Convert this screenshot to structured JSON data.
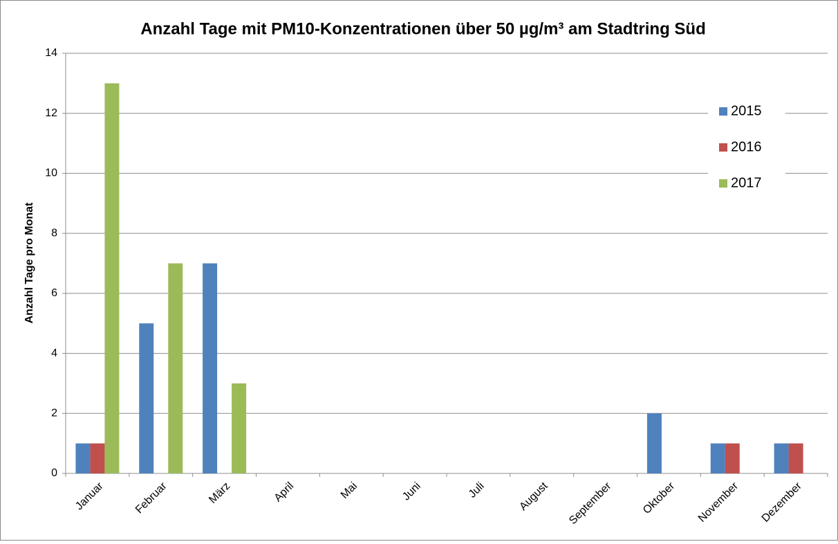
{
  "chart_data": {
    "type": "bar",
    "title": "Anzahl Tage mit PM10-Konzentrationen über 50 µg/m³ am Stadtring Süd",
    "y_label": "Anzahl Tage pro Monat",
    "categories": [
      "Januar",
      "Februar",
      "März",
      "April",
      "Mai",
      "Juni",
      "Juli",
      "August",
      "September",
      "Oktober",
      "November",
      "Dezember"
    ],
    "series": [
      {
        "name": "2015",
        "color": "#4f81bd",
        "values": [
          1,
          5,
          7,
          0,
          0,
          0,
          0,
          0,
          0,
          2,
          1,
          1
        ]
      },
      {
        "name": "2016",
        "color": "#c0504d",
        "values": [
          1,
          0,
          0,
          0,
          0,
          0,
          0,
          0,
          0,
          0,
          1,
          1
        ]
      },
      {
        "name": "2017",
        "color": "#9bbb59",
        "values": [
          13,
          7,
          3,
          0,
          0,
          0,
          0,
          0,
          0,
          0,
          0,
          0
        ]
      }
    ],
    "ylim": [
      0,
      14
    ],
    "yticks": [
      0,
      2,
      4,
      6,
      8,
      10,
      12,
      14
    ],
    "grid": true,
    "legend": "top-right"
  }
}
